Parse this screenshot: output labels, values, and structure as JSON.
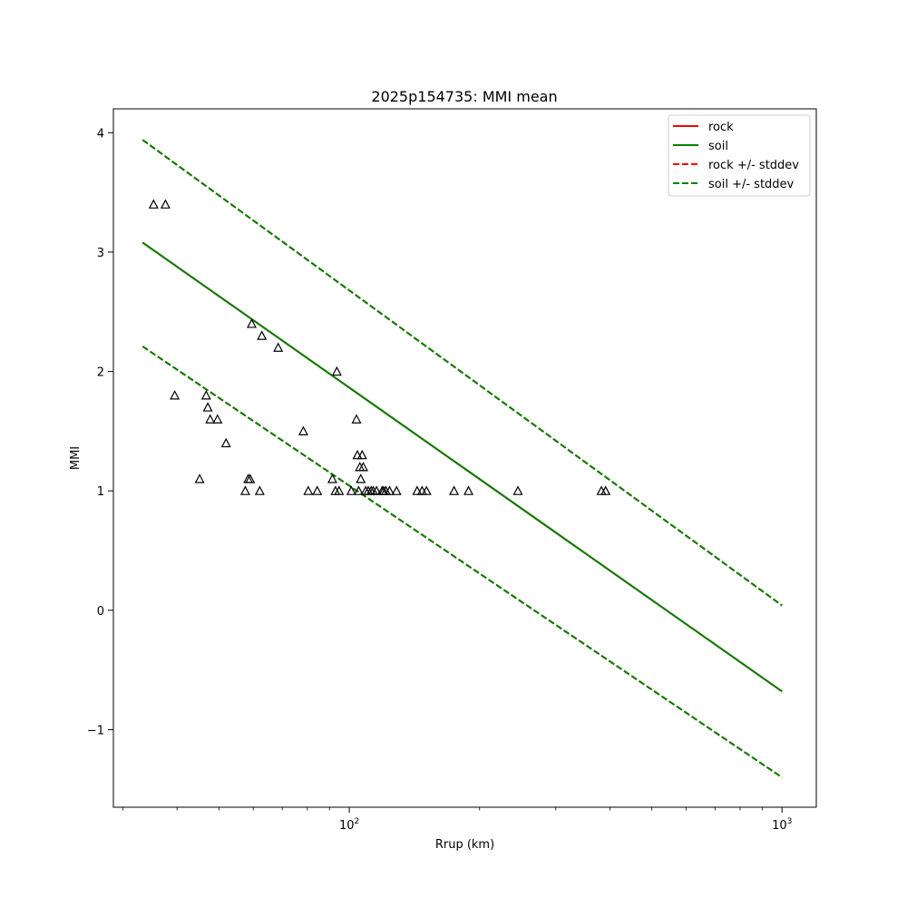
{
  "chart_data": {
    "type": "scatter",
    "title": "2025p154735: MMI mean",
    "xlabel": "Rrup (km)",
    "ylabel": "MMI",
    "xscale": "log",
    "xlim": [
      28.5,
      1200
    ],
    "ylim": [
      -1.65,
      4.2
    ],
    "grid": false,
    "legend_placement": "top-right",
    "x_ticks": [
      {
        "value": 100,
        "base": "10",
        "exp": "2"
      },
      {
        "value": 1000,
        "base": "10",
        "exp": "3"
      }
    ],
    "x_minor_ticks": [
      30,
      40,
      50,
      60,
      70,
      80,
      90,
      200,
      300,
      400,
      500,
      600,
      700,
      800,
      900
    ],
    "y_ticks": [
      {
        "value": -1,
        "label": "−1"
      },
      {
        "value": 0,
        "label": "0"
      },
      {
        "value": 1,
        "label": "1"
      },
      {
        "value": 2,
        "label": "2"
      },
      {
        "value": 3,
        "label": "3"
      },
      {
        "value": 4,
        "label": "4"
      }
    ],
    "lines": [
      {
        "name": "rock",
        "color": "#ff0000",
        "dash": false,
        "x": [
          33.3,
          1000
        ],
        "y": [
          3.08,
          -0.68
        ]
      },
      {
        "name": "soil",
        "color": "#008000",
        "dash": false,
        "x": [
          33.3,
          1000
        ],
        "y": [
          3.08,
          -0.68
        ]
      },
      {
        "name": "rock +/- stddev",
        "color": "#ff0000",
        "dash": true,
        "x": [
          33.3,
          1000
        ],
        "y": [
          3.94,
          0.04
        ]
      },
      {
        "name": "rock +/- stddev",
        "color": "#ff0000",
        "dash": true,
        "x": [
          33.3,
          1000
        ],
        "y": [
          2.21,
          -1.4
        ]
      },
      {
        "name": "soil +/- stddev",
        "color": "#008000",
        "dash": true,
        "x": [
          33.3,
          1000
        ],
        "y": [
          3.94,
          0.04
        ]
      },
      {
        "name": "soil +/- stddev",
        "color": "#008000",
        "dash": true,
        "x": [
          33.3,
          1000
        ],
        "y": [
          2.21,
          -1.4
        ]
      }
    ],
    "legend": [
      {
        "label": "rock",
        "color": "#ff0000",
        "dash": false
      },
      {
        "label": "soil",
        "color": "#008000",
        "dash": false
      },
      {
        "label": "rock +/- stddev",
        "color": "#ff0000",
        "dash": true
      },
      {
        "label": "soil +/- stddev",
        "color": "#008000",
        "dash": true
      }
    ],
    "points": {
      "marker": "triangle-open",
      "color": "#000000",
      "x": [
        35.3,
        37.6,
        39.5,
        45.1,
        46.7,
        47.1,
        47.7,
        49.6,
        51.9,
        57.5,
        58.4,
        59.0,
        59.5,
        62.1,
        62.8,
        68.5,
        78.3,
        80.4,
        84.3,
        91.4,
        92.9,
        93.6,
        94.7,
        101.1,
        103.9,
        104.4,
        105.1,
        105.8,
        106.3,
        107.1,
        107.7,
        109.1,
        110.6,
        112.3,
        113.6,
        115.6,
        119.1,
        120.1,
        121.5,
        123.9,
        128.6,
        143.5,
        147.3,
        150.8,
        174.6,
        188.6,
        245.3,
        382.5,
        391.1
      ],
      "y": [
        3.4,
        3.4,
        1.8,
        1.1,
        1.8,
        1.7,
        1.6,
        1.6,
        1.4,
        1.0,
        1.1,
        1.1,
        2.4,
        1.0,
        2.3,
        2.2,
        1.5,
        1.0,
        1.0,
        1.1,
        1.0,
        2.0,
        1.0,
        1.0,
        1.6,
        1.3,
        1.0,
        1.2,
        1.1,
        1.3,
        1.2,
        1.0,
        1.0,
        1.0,
        1.0,
        1.0,
        1.0,
        1.0,
        1.0,
        1.0,
        1.0,
        1.0,
        1.0,
        1.0,
        1.0,
        1.0,
        1.0,
        1.0,
        1.0
      ]
    }
  }
}
